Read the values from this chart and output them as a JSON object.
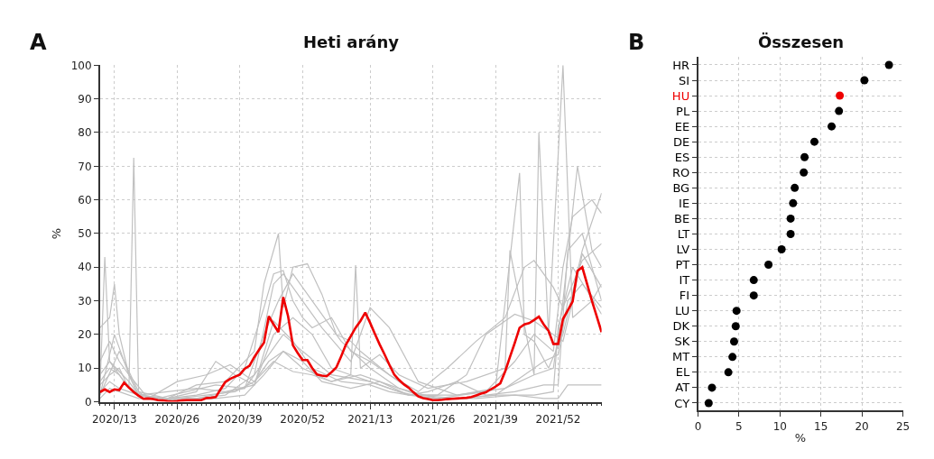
{
  "chart_data": [
    {
      "type": "line",
      "title": "Heti arány",
      "ylabel": "%",
      "annotations": [
        "A"
      ],
      "categories": [
        null,
        null,
        null,
        "2020/13",
        null,
        null,
        null,
        null,
        null,
        null,
        null,
        null,
        null,
        null,
        null,
        null,
        "2020/26",
        null,
        null,
        null,
        null,
        null,
        null,
        null,
        null,
        null,
        null,
        null,
        null,
        "2020/39",
        null,
        null,
        null,
        null,
        null,
        null,
        null,
        null,
        null,
        null,
        null,
        null,
        "2020/52",
        null,
        null,
        null,
        null,
        null,
        null,
        null,
        null,
        null,
        null,
        null,
        null,
        null,
        "2021/13",
        null,
        null,
        null,
        null,
        null,
        null,
        null,
        null,
        null,
        null,
        null,
        null,
        "2021/26",
        null,
        null,
        null,
        null,
        null,
        null,
        null,
        null,
        null,
        null,
        null,
        null,
        "2021/39",
        null,
        null,
        null,
        null,
        null,
        null,
        null,
        null,
        null,
        null,
        null,
        null,
        "2021/52",
        null,
        null,
        null,
        null,
        null,
        null,
        null,
        null,
        null
      ],
      "ylim": [
        0,
        100
      ],
      "yticks": [
        0,
        10,
        20,
        30,
        40,
        50,
        60,
        70,
        80,
        90,
        100
      ],
      "grid": true,
      "series": [
        {
          "color": "#c0c0c0",
          "values": [
            5,
            null,
            8,
            null,
            10,
            null,
            4,
            72.5,
            3,
            null,
            1,
            null,
            null,
            null,
            null,
            null,
            1,
            null,
            null,
            null,
            null,
            null,
            2,
            null,
            null,
            null,
            null,
            null,
            3,
            null,
            null,
            null,
            6,
            null,
            null,
            12,
            null,
            null,
            15,
            null,
            null,
            null,
            10,
            null,
            null,
            null,
            null,
            null,
            6,
            null,
            null,
            null,
            null,
            null,
            8,
            null,
            null,
            null,
            null,
            null,
            5,
            null,
            null,
            null,
            null,
            null,
            2,
            null,
            null,
            null,
            null,
            null,
            null,
            null,
            1,
            null,
            null,
            null,
            null,
            null,
            null,
            null,
            2,
            null,
            null,
            null,
            null,
            null,
            8,
            null,
            null,
            null,
            12,
            null,
            null,
            14,
            null,
            30,
            null,
            null,
            35,
            null,
            null,
            null,
            28
          ]
        },
        {
          "color": "#c0c0c0",
          "values": [
            4,
            43,
            12,
            null,
            9,
            null,
            6,
            null,
            2,
            null,
            null,
            null,
            1,
            null,
            null,
            null,
            null,
            null,
            3,
            null,
            null,
            null,
            null,
            null,
            5,
            null,
            null,
            null,
            null,
            null,
            4,
            null,
            null,
            null,
            20,
            null,
            null,
            30,
            null,
            null,
            38,
            null,
            null,
            null,
            30,
            null,
            null,
            null,
            null,
            null,
            18,
            null,
            null,
            null,
            null,
            null,
            10,
            null,
            null,
            null,
            null,
            null,
            4,
            null,
            null,
            null,
            null,
            null,
            null,
            null,
            1,
            null,
            null,
            null,
            null,
            null,
            null,
            null,
            null,
            null,
            3,
            null,
            null,
            null,
            null,
            null,
            12,
            null,
            null,
            null,
            20,
            null,
            null,
            null,
            15,
            null,
            40,
            null,
            55,
            null,
            null,
            null,
            60,
            null,
            56
          ]
        },
        {
          "color": "#c0c0c0",
          "values": [
            22,
            null,
            25,
            35,
            20,
            null,
            8,
            null,
            2,
            null,
            null,
            null,
            null,
            null,
            1,
            null,
            null,
            null,
            null,
            null,
            1,
            null,
            null,
            null,
            null,
            null,
            2,
            null,
            null,
            null,
            null,
            null,
            8,
            null,
            null,
            null,
            35,
            null,
            38,
            null,
            null,
            null,
            30,
            null,
            null,
            null,
            22,
            null,
            null,
            null,
            null,
            null,
            12,
            null,
            null,
            null,
            28,
            null,
            null,
            null,
            22,
            null,
            null,
            null,
            null,
            null,
            6,
            null,
            null,
            null,
            null,
            null,
            null,
            null,
            2,
            null,
            null,
            null,
            null,
            null,
            null,
            null,
            null,
            null,
            4,
            null,
            null,
            null,
            null,
            null,
            8,
            null,
            null,
            null,
            10,
            null,
            30,
            null,
            null,
            70,
            null,
            null,
            45,
            null,
            40
          ]
        },
        {
          "color": "#c0c0c0",
          "values": [
            12,
            null,
            18,
            null,
            12,
            null,
            8,
            null,
            2,
            null,
            null,
            null,
            null,
            null,
            1,
            null,
            null,
            null,
            null,
            null,
            5,
            null,
            null,
            null,
            null,
            null,
            6,
            null,
            null,
            null,
            null,
            null,
            15,
            null,
            35,
            null,
            null,
            50,
            28,
            null,
            40,
            null,
            null,
            41,
            null,
            null,
            32,
            null,
            null,
            20,
            null,
            null,
            18,
            null,
            15,
            null,
            null,
            null,
            null,
            null,
            8,
            null,
            null,
            null,
            null,
            null,
            2,
            null,
            null,
            null,
            null,
            null,
            null,
            null,
            2,
            null,
            null,
            null,
            null,
            null,
            null,
            null,
            4,
            null,
            null,
            null,
            null,
            68,
            20,
            null,
            18,
            null,
            null,
            10,
            null,
            null,
            20,
            null,
            null,
            null,
            45,
            null,
            null,
            null,
            62
          ]
        },
        {
          "color": "#c0c0c0",
          "values": [
            6,
            null,
            10,
            null,
            8,
            null,
            4,
            null,
            null,
            null,
            1,
            null,
            null,
            null,
            null,
            null,
            6,
            null,
            null,
            null,
            null,
            null,
            8,
            null,
            null,
            null,
            null,
            11,
            null,
            null,
            null,
            null,
            6,
            null,
            null,
            null,
            12,
            null,
            null,
            null,
            9,
            null,
            null,
            null,
            8,
            null,
            null,
            null,
            6,
            null,
            null,
            null,
            8,
            40.6,
            10,
            null,
            null,
            null,
            14,
            null,
            null,
            null,
            8,
            null,
            null,
            null,
            null,
            null,
            4,
            null,
            null,
            null,
            null,
            null,
            null,
            null,
            6,
            null,
            null,
            null,
            null,
            null,
            null,
            null,
            10,
            45,
            null,
            null,
            null,
            null,
            8,
            80,
            null,
            20,
            null,
            null,
            100,
            null,
            25,
            null,
            null,
            null,
            30,
            null,
            35
          ]
        },
        {
          "color": "#c0c0c0",
          "values": [
            3,
            null,
            6,
            null,
            4,
            null,
            null,
            null,
            2,
            null,
            null,
            null,
            null,
            null,
            1,
            null,
            null,
            null,
            null,
            null,
            2,
            null,
            null,
            null,
            null,
            null,
            4,
            null,
            null,
            null,
            10,
            null,
            null,
            null,
            28,
            null,
            38,
            null,
            39,
            null,
            30,
            null,
            25,
            null,
            22,
            null,
            null,
            null,
            25,
            null,
            null,
            null,
            15,
            null,
            null,
            null,
            12,
            null,
            null,
            null,
            8,
            null,
            null,
            null,
            null,
            null,
            3,
            null,
            null,
            null,
            null,
            null,
            10,
            null,
            null,
            null,
            null,
            null,
            18,
            null,
            null,
            null,
            null,
            null,
            25,
            null,
            null,
            null,
            40,
            null,
            42,
            null,
            null,
            null,
            34,
            null,
            28,
            null,
            null,
            null,
            42,
            null,
            null,
            null,
            47
          ]
        },
        {
          "color": "#c0c0c0",
          "values": [
            2,
            null,
            null,
            null,
            15,
            null,
            null,
            null,
            3,
            null,
            null,
            null,
            null,
            null,
            1,
            null,
            null,
            null,
            null,
            null,
            3,
            null,
            null,
            null,
            12,
            null,
            null,
            null,
            8,
            null,
            null,
            null,
            5,
            null,
            null,
            null,
            20,
            null,
            null,
            null,
            25,
            null,
            null,
            null,
            20,
            null,
            null,
            null,
            10,
            null,
            null,
            null,
            8,
            null,
            null,
            null,
            6,
            null,
            null,
            null,
            4,
            null,
            null,
            null,
            2,
            null,
            null,
            null,
            3,
            null,
            null,
            null,
            null,
            null,
            6,
            null,
            null,
            null,
            null,
            null,
            2,
            null,
            null,
            null,
            null,
            null,
            3,
            null,
            null,
            null,
            null,
            null,
            5,
            null,
            null,
            5,
            null,
            45,
            null,
            null,
            50,
            null,
            null,
            null,
            30
          ]
        },
        {
          "color": "#c0c0c0",
          "values": [
            8,
            null,
            12,
            null,
            null,
            6,
            null,
            null,
            2,
            null,
            null,
            null,
            null,
            null,
            3,
            null,
            null,
            null,
            null,
            null,
            4,
            null,
            null,
            null,
            null,
            null,
            3,
            null,
            null,
            null,
            null,
            null,
            5,
            null,
            null,
            null,
            24,
            null,
            null,
            null,
            18,
            null,
            null,
            null,
            10,
            null,
            null,
            null,
            null,
            null,
            6,
            null,
            null,
            null,
            null,
            null,
            5,
            null,
            null,
            null,
            3,
            null,
            null,
            null,
            2,
            null,
            null,
            null,
            null,
            null,
            2,
            null,
            null,
            null,
            null,
            null,
            8,
            null,
            null,
            null,
            20,
            null,
            null,
            null,
            null,
            null,
            26,
            null,
            null,
            null,
            24,
            null,
            null,
            null,
            20,
            null,
            18,
            null,
            30,
            null,
            44,
            null,
            null,
            null,
            34
          ]
        },
        {
          "color": "#c0c0c0",
          "values": [
            1,
            null,
            4,
            null,
            3,
            null,
            null,
            null,
            1,
            null,
            null,
            null,
            null,
            null,
            null,
            null,
            0.5,
            null,
            null,
            null,
            null,
            null,
            null,
            null,
            1,
            null,
            null,
            null,
            null,
            null,
            2,
            null,
            null,
            null,
            8,
            null,
            null,
            null,
            15,
            null,
            null,
            null,
            12,
            null,
            null,
            null,
            6,
            null,
            null,
            null,
            null,
            null,
            4,
            null,
            null,
            null,
            null,
            null,
            6,
            null,
            null,
            null,
            null,
            null,
            2,
            null,
            null,
            null,
            null,
            null,
            1,
            null,
            null,
            null,
            null,
            null,
            null,
            null,
            1,
            null,
            null,
            null,
            null,
            null,
            null,
            null,
            2,
            null,
            null,
            null,
            null,
            null,
            1,
            null,
            null,
            1,
            null,
            5,
            null,
            null,
            null,
            null,
            5,
            null,
            5
          ]
        },
        {
          "color": "#c0c0c0",
          "values": [
            2,
            null,
            null,
            20,
            null,
            null,
            8,
            null,
            null,
            null,
            1,
            null,
            null,
            null,
            null,
            null,
            null,
            null,
            null,
            null,
            1,
            null,
            null,
            null,
            null,
            null,
            null,
            null,
            null,
            null,
            4,
            null,
            null,
            null,
            12,
            null,
            null,
            null,
            20,
            null,
            null,
            null,
            15,
            null,
            null,
            null,
            null,
            null,
            8,
            null,
            null,
            null,
            null,
            null,
            null,
            null,
            6,
            null,
            null,
            null,
            null,
            null,
            3,
            null,
            null,
            null,
            null,
            null,
            1,
            null,
            null,
            null,
            null,
            null,
            1,
            null,
            null,
            null,
            null,
            null,
            null,
            null,
            2,
            null,
            null,
            null,
            null,
            null,
            null,
            null,
            2,
            null,
            null,
            null,
            3,
            22,
            null,
            null,
            40,
            null,
            null,
            null,
            null,
            null,
            26
          ]
        },
        {
          "color": "#ee0000",
          "values": [
            2.9,
            3.7,
            2.9,
            3.7,
            3.5,
            5.7,
            4.2,
            2.9,
            1.8,
            0.9,
            1.0,
            0.8,
            0.5,
            0.4,
            0.2,
            0.1,
            0.2,
            0.4,
            0.5,
            0.5,
            0.5,
            0.5,
            1.1,
            1.2,
            1.4,
            3.7,
            5.9,
            6.8,
            7.5,
            8.1,
            9.8,
            10.7,
            13.3,
            15.5,
            17.6,
            25.4,
            23,
            20.7,
            31.1,
            25.4,
            16.8,
            14.5,
            12.4,
            12.4,
            10,
            8.1,
            7.8,
            7.6,
            8.8,
            10.2,
            13.5,
            17,
            19.5,
            22,
            24,
            26.5,
            23.5,
            20.2,
            17,
            14.1,
            11,
            8.1,
            6.5,
            5.2,
            4.2,
            2.8,
            1.6,
            1.1,
            0.8,
            0.5,
            0.5,
            0.6,
            0.8,
            0.9,
            1.0,
            1.1,
            1.2,
            1.4,
            1.9,
            2.4,
            2.8,
            3.7,
            4.5,
            5.5,
            9,
            13.3,
            17.5,
            22,
            23,
            23.4,
            24.3,
            25.3,
            23,
            21.1,
            17.2,
            17.2,
            24.6,
            27.2,
            29.8,
            38.9,
            40,
            35,
            30,
            25.4,
            20.7
          ]
        }
      ]
    },
    {
      "type": "scatter",
      "orientation": "horizontal",
      "title": "Összesen",
      "xlabel": "%",
      "annotations": [
        "B"
      ],
      "categories": [
        "HR",
        "SI",
        "HU",
        "PL",
        "EE",
        "DE",
        "ES",
        "RO",
        "BG",
        "IE",
        "BE",
        "LT",
        "LV",
        "PT",
        "IT",
        "FI",
        "LU",
        "DK",
        "SK",
        "MT",
        "EL",
        "AT",
        "CY"
      ],
      "values": [
        23.3,
        20.3,
        17.3,
        17.2,
        16.3,
        14.2,
        13.0,
        12.9,
        11.8,
        11.6,
        11.3,
        11.3,
        10.2,
        8.6,
        6.8,
        6.8,
        4.7,
        4.6,
        4.4,
        4.2,
        3.7,
        1.7,
        1.3
      ],
      "colors": [
        "#000000",
        "#000000",
        "#ee0000",
        "#000000",
        "#000000",
        "#000000",
        "#000000",
        "#000000",
        "#000000",
        "#000000",
        "#000000",
        "#000000",
        "#000000",
        "#000000",
        "#000000",
        "#000000",
        "#000000",
        "#000000",
        "#000000",
        "#000000",
        "#000000",
        "#000000",
        "#000000"
      ],
      "xlim": [
        0,
        25
      ],
      "xticks": [
        0,
        5,
        10,
        15,
        20,
        25
      ],
      "grid": true,
      "marker": "circle"
    }
  ]
}
